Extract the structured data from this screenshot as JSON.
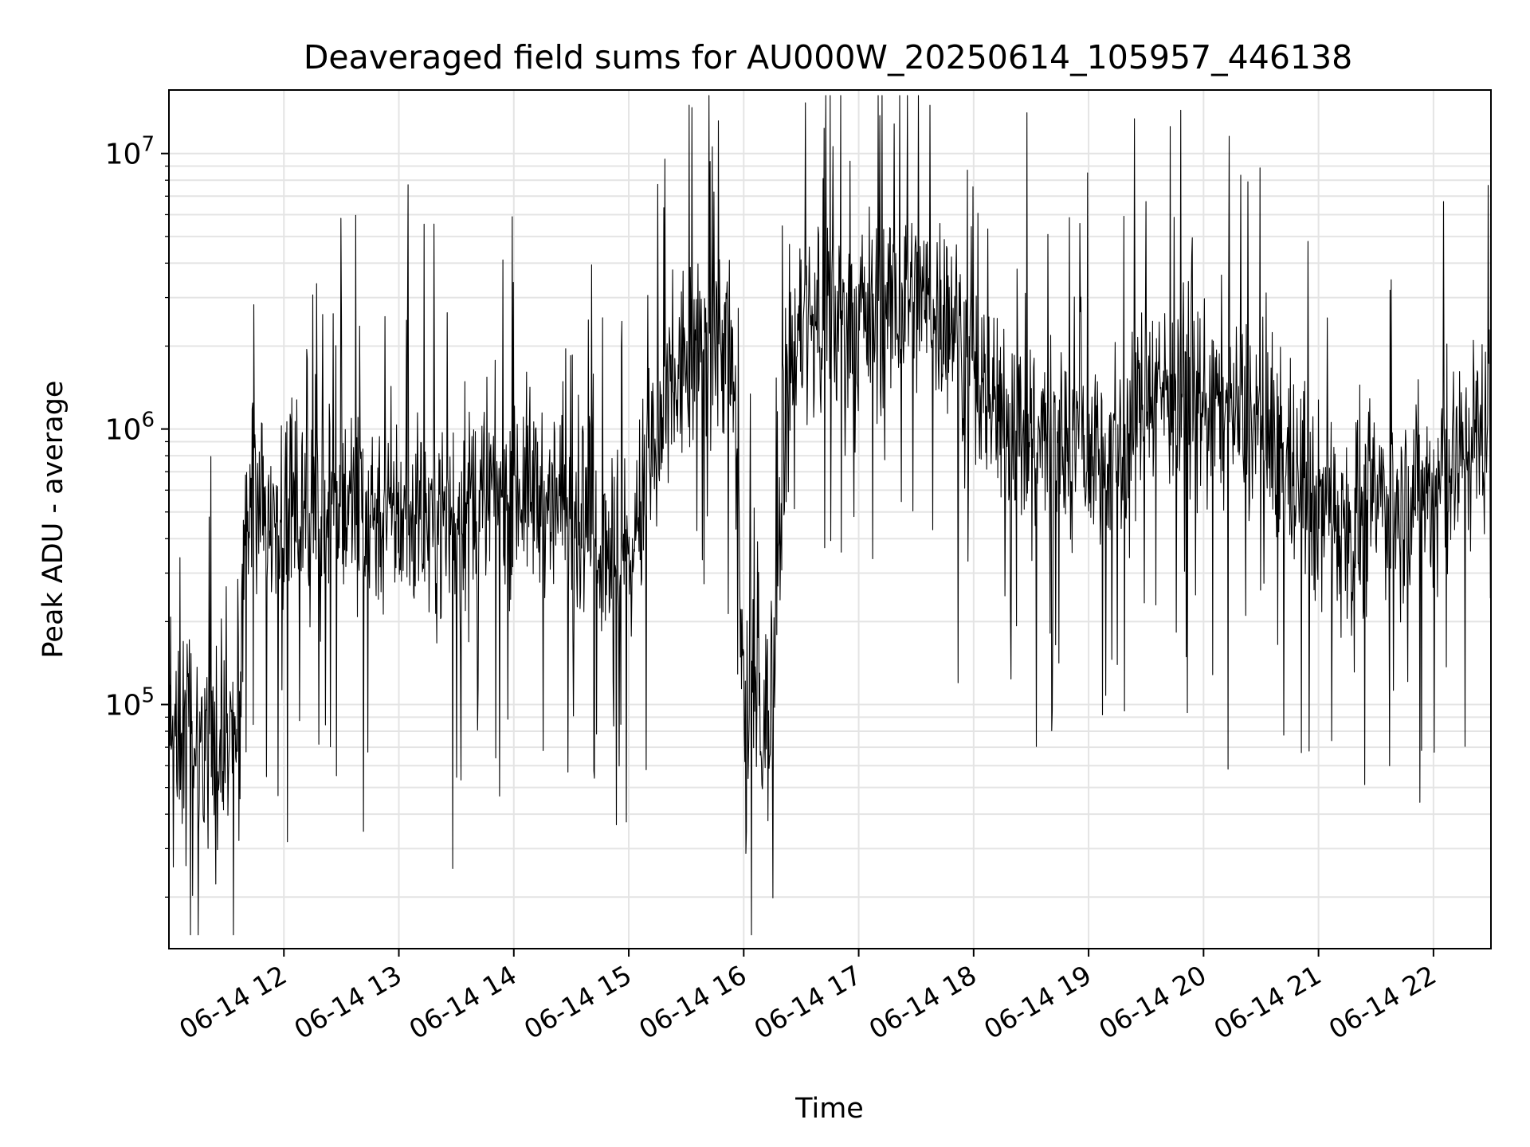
{
  "chart_data": {
    "type": "line",
    "title": "Deaveraged field sums for AU000W_20250614_105957_446138",
    "xlabel": "Time",
    "ylabel": "Peak ADU - average",
    "yscale": "log",
    "ylim": [
      13000,
      17000000
    ],
    "xlim": [
      "2025-06-14 11:00",
      "2025-06-14 22:30"
    ],
    "grid": true,
    "x_tick_labels": [
      "06-14 12",
      "06-14 13",
      "06-14 14",
      "06-14 15",
      "06-14 16",
      "06-14 17",
      "06-14 18",
      "06-14 19",
      "06-14 20",
      "06-14 21",
      "06-14 22"
    ],
    "y_tick_labels": [
      {
        "base": "10",
        "exp": "5",
        "value": 100000
      },
      {
        "base": "10",
        "exp": "6",
        "value": 1000000
      },
      {
        "base": "10",
        "exp": "7",
        "value": 10000000
      }
    ],
    "series": [
      {
        "color": "#000000",
        "x": [
          "2025-06-14 11:00",
          "2025-06-14 11:15",
          "2025-06-14 11:30",
          "2025-06-14 11:37",
          "2025-06-14 11:40",
          "2025-06-14 12:00",
          "2025-06-14 12:30",
          "2025-06-14 13:00",
          "2025-06-14 13:30",
          "2025-06-14 14:00",
          "2025-06-14 14:30",
          "2025-06-14 14:50",
          "2025-06-14 15:00",
          "2025-06-14 15:10",
          "2025-06-14 15:30",
          "2025-06-14 15:50",
          "2025-06-14 15:55",
          "2025-06-14 16:00",
          "2025-06-14 16:10",
          "2025-06-14 16:15",
          "2025-06-14 16:20",
          "2025-06-14 16:30",
          "2025-06-14 17:00",
          "2025-06-14 17:30",
          "2025-06-14 17:50",
          "2025-06-14 18:00",
          "2025-06-14 18:30",
          "2025-06-14 19:00",
          "2025-06-14 19:20",
          "2025-06-14 19:30",
          "2025-06-14 20:00",
          "2025-06-14 20:30",
          "2025-06-14 21:00",
          "2025-06-14 21:30",
          "2025-06-14 22:00",
          "2025-06-14 22:30"
        ],
        "y": [
          90000,
          75000,
          70000,
          90000,
          550000,
          500000,
          550000,
          480000,
          480000,
          650000,
          500000,
          420000,
          300000,
          700000,
          1800000,
          2200000,
          1200000,
          110000,
          85000,
          90000,
          900000,
          2400000,
          2600000,
          2900000,
          2600000,
          1400000,
          1000000,
          850000,
          850000,
          1500000,
          1300000,
          1000000,
          500000,
          550000,
          600000,
          1100000
        ]
      }
    ]
  }
}
